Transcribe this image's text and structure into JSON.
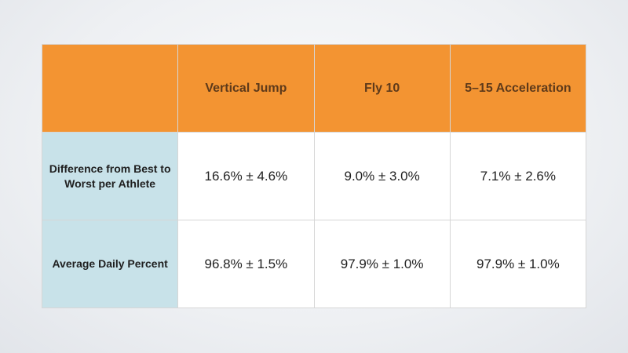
{
  "table": {
    "columns": [
      "",
      "Vertical Jump",
      "Fly 10",
      "5–15 Acceleration"
    ],
    "rows": [
      {
        "label": "Difference from Best to Worst per Athlete",
        "values": [
          "16.6% ± 4.6%",
          "9.0% ± 3.0%",
          "7.1% ± 2.6%"
        ]
      },
      {
        "label": "Average Daily Percent",
        "values": [
          "96.8% ± 1.5%",
          "97.9% ± 1.0%",
          "97.9% ± 1.0%"
        ]
      }
    ]
  },
  "colors": {
    "header_background": "#f39432",
    "header_text": "#5e3a1a",
    "row_label_background": "#c8e2e9",
    "cell_background": "#ffffff"
  }
}
